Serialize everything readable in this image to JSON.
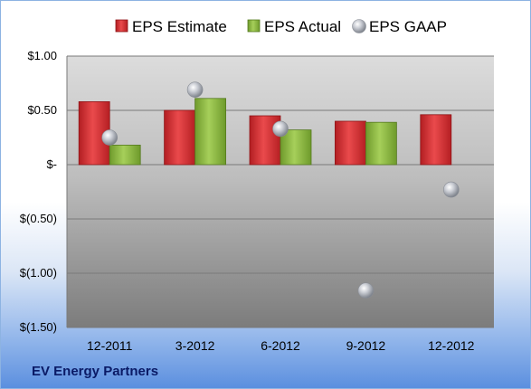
{
  "company": "EV Energy Partners",
  "colors": {
    "estimate": "#d62a2e",
    "actual": "#8ab83c",
    "gaap": "#b8bcc6"
  },
  "chart_data": {
    "type": "bar",
    "categories": [
      "12-2011",
      "3-2012",
      "6-2012",
      "9-2012",
      "12-2012"
    ],
    "series": [
      {
        "name": "EPS Estimate",
        "type": "bar",
        "values": [
          0.58,
          0.5,
          0.45,
          0.4,
          0.46
        ]
      },
      {
        "name": "EPS Actual",
        "type": "bar",
        "values": [
          0.18,
          0.61,
          0.32,
          0.39,
          null
        ]
      },
      {
        "name": "EPS GAAP",
        "type": "scatter",
        "values": [
          0.25,
          0.69,
          0.33,
          -1.16,
          -0.23
        ]
      }
    ],
    "ylim": [
      -1.5,
      1.0
    ],
    "yticks": [
      1.0,
      0.5,
      0,
      -0.5,
      -1.0,
      -1.5
    ],
    "ytick_labels": [
      "$1.00",
      "$0.50",
      "$-",
      "$(0.50)",
      "$(1.00)",
      "$(1.50)"
    ],
    "title": "",
    "xlabel": "",
    "ylabel": "",
    "grid": true,
    "legend_position": "top"
  }
}
